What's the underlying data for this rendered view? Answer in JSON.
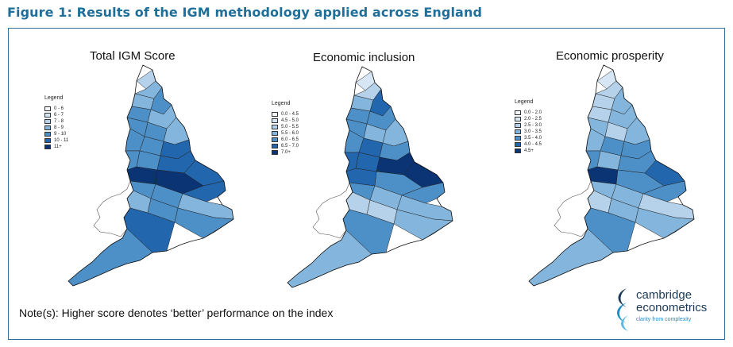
{
  "figure_title": "Figure 1: Results of the IGM methodology applied across England",
  "panels": [
    {
      "title": "Total IGM Score",
      "legend_title": "Legend",
      "legend": [
        "0 - 6",
        "6 - 7",
        "7 - 8",
        "8 - 9",
        "9 - 10",
        "10 - 11",
        "11+"
      ]
    },
    {
      "title": "Economic inclusion",
      "legend_title": "Legend",
      "legend": [
        "0.0 - 4.5",
        "4.5 - 5.0",
        "5.0 - 5.5",
        "5.5 - 6.0",
        "6.0 - 6.5",
        "6.5 - 7.0",
        "7.0+"
      ]
    },
    {
      "title": "Economic prosperity",
      "legend_title": "Legend",
      "legend": [
        "0.0 - 2.0",
        "2.0 - 2.5",
        "2.5 - 3.0",
        "3.0 - 3.5",
        "3.5 - 4.0",
        "4.0 - 4.5",
        "4.5+"
      ]
    }
  ],
  "legend_colors": [
    "#f4f8fc",
    "#d6e6f4",
    "#b5d2ea",
    "#84b6dd",
    "#4d8fc7",
    "#2266ad",
    "#0b3474"
  ],
  "wales_color": "#ffffff",
  "note": "Note(s):  Higher score denotes ‘better’ performance on the index",
  "logo": {
    "line1": "cambridge",
    "line2": "econometrics",
    "tagline": "clarity from complexity",
    "colors": [
      "#1b3a57",
      "#1e8ec8",
      "#5fb8e6"
    ]
  }
}
